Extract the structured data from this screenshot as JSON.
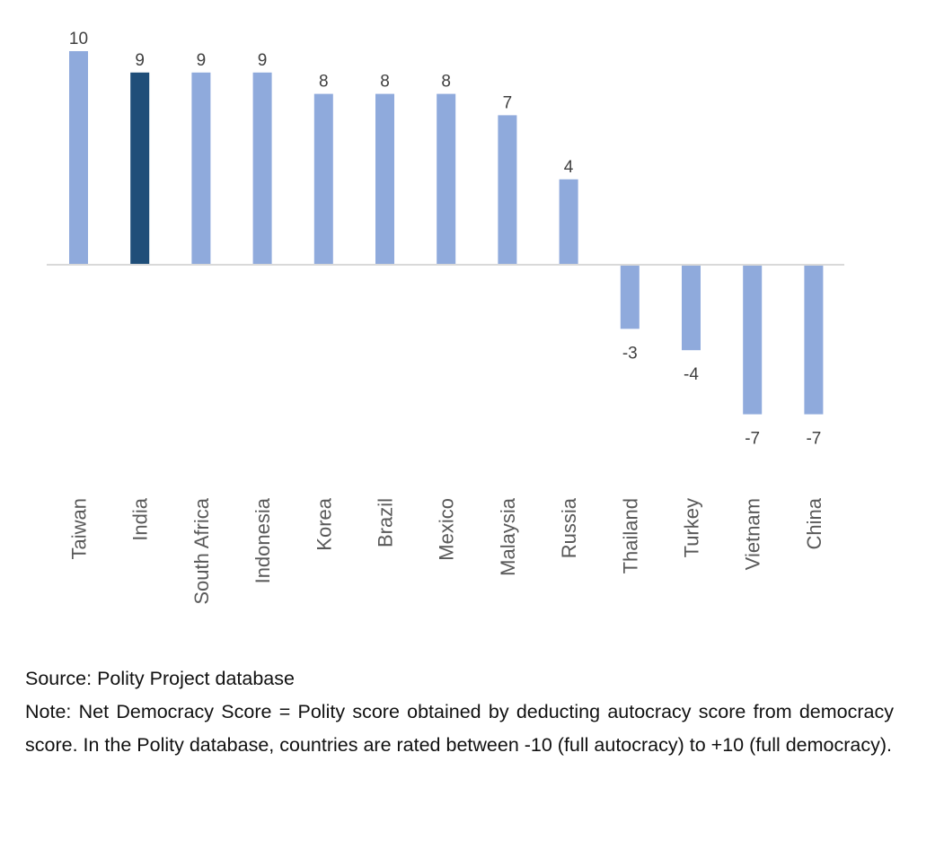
{
  "chart_data": {
    "type": "bar",
    "categories": [
      "Taiwan",
      "India",
      "South Africa",
      "Indonesia",
      "Korea",
      "Brazil",
      "Mexico",
      "Malaysia",
      "Russia",
      "Thailand",
      "Turkey",
      "Vietnam",
      "China"
    ],
    "values": [
      10,
      9,
      9,
      9,
      8,
      8,
      8,
      7,
      4,
      -3,
      -4,
      -7,
      -7
    ],
    "highlight_index": 1,
    "ylim": [
      -10,
      10
    ],
    "grid": false,
    "legend": "none"
  },
  "colors": {
    "bar": "#8faadc",
    "highlight": "#1f4e79",
    "axis": "#d9d9d9"
  },
  "notes": {
    "source": "Source: Polity Project database",
    "note": "Note: Net Democracy Score = Polity score obtained by deducting autocracy score from democracy score. In the Polity database, countries are rated between -10 (full autocracy) to +10 (full democracy)."
  }
}
